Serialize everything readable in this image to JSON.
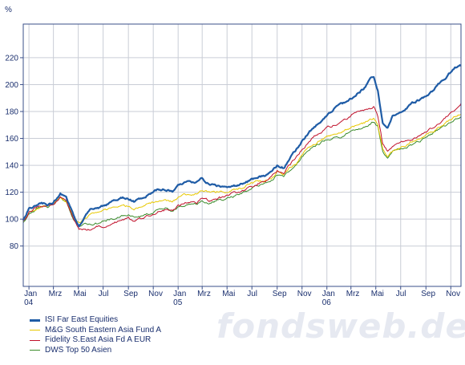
{
  "chart_data": {
    "type": "line",
    "unit_label": "%",
    "ylim": [
      50,
      245
    ],
    "y_ticks": [
      80,
      100,
      120,
      140,
      160,
      180,
      200,
      220
    ],
    "x_start": "2004-01-01",
    "x_end": "2006-12-10",
    "x_ticks": [
      {
        "date": "2004-01-15",
        "label": "Jan",
        "year": "04"
      },
      {
        "date": "2004-03-15",
        "label": "Mrz",
        "year": ""
      },
      {
        "date": "2004-05-15",
        "label": "Mai",
        "year": ""
      },
      {
        "date": "2004-07-15",
        "label": "Jul",
        "year": ""
      },
      {
        "date": "2004-09-15",
        "label": "Sep",
        "year": ""
      },
      {
        "date": "2004-11-15",
        "label": "Nov",
        "year": ""
      },
      {
        "date": "2005-01-15",
        "label": "Jan",
        "year": "05"
      },
      {
        "date": "2005-03-15",
        "label": "Mrz",
        "year": ""
      },
      {
        "date": "2005-05-15",
        "label": "Mai",
        "year": ""
      },
      {
        "date": "2005-07-15",
        "label": "Jul",
        "year": ""
      },
      {
        "date": "2005-09-15",
        "label": "Sep",
        "year": ""
      },
      {
        "date": "2005-11-15",
        "label": "Nov",
        "year": ""
      },
      {
        "date": "2006-01-15",
        "label": "Jan",
        "year": "06"
      },
      {
        "date": "2006-03-15",
        "label": "Mrz",
        "year": ""
      },
      {
        "date": "2006-05-15",
        "label": "Mai",
        "year": ""
      },
      {
        "date": "2006-07-15",
        "label": "Jul",
        "year": ""
      },
      {
        "date": "2006-09-15",
        "label": "Sep",
        "year": ""
      },
      {
        "date": "2006-11-15",
        "label": "Nov",
        "year": ""
      }
    ],
    "grid": true,
    "legend_position": "bottom-left",
    "series": [
      {
        "name": "DWS Top 50 Asien",
        "color": "#3c8c2c",
        "x": [
          "2004-01-01",
          "2004-01-15",
          "2004-02-01",
          "2004-02-15",
          "2004-03-01",
          "2004-03-15",
          "2004-04-01",
          "2004-04-15",
          "2004-05-01",
          "2004-05-10",
          "2004-05-17",
          "2004-06-01",
          "2004-06-15",
          "2004-07-01",
          "2004-07-15",
          "2004-08-01",
          "2004-08-15",
          "2004-09-01",
          "2004-09-15",
          "2004-10-01",
          "2004-10-15",
          "2004-11-01",
          "2004-11-15",
          "2004-12-01",
          "2004-12-15",
          "2005-01-01",
          "2005-01-15",
          "2005-02-01",
          "2005-02-15",
          "2005-03-01",
          "2005-03-15",
          "2005-04-01",
          "2005-04-15",
          "2005-05-01",
          "2005-05-15",
          "2005-06-01",
          "2005-06-15",
          "2005-07-01",
          "2005-07-15",
          "2005-08-01",
          "2005-08-15",
          "2005-09-01",
          "2005-09-15",
          "2005-10-01",
          "2005-10-15",
          "2005-11-01",
          "2005-11-15",
          "2005-12-01",
          "2005-12-15",
          "2006-01-01",
          "2006-01-15",
          "2006-02-01",
          "2006-02-15",
          "2006-03-01",
          "2006-03-15",
          "2006-04-01",
          "2006-04-15",
          "2006-05-01",
          "2006-05-10",
          "2006-05-20",
          "2006-06-01",
          "2006-06-13",
          "2006-06-25",
          "2006-07-10",
          "2006-07-25",
          "2006-08-10",
          "2006-08-25",
          "2006-09-10",
          "2006-09-25",
          "2006-10-10",
          "2006-10-25",
          "2006-11-10",
          "2006-11-25",
          "2006-12-10"
        ],
        "values": [
          97,
          104,
          107,
          109,
          109,
          111,
          116,
          112,
          100,
          97,
          95,
          96,
          97,
          97,
          99,
          100,
          101,
          102,
          103,
          101,
          102,
          104,
          105,
          107,
          108,
          106,
          109,
          110,
          111,
          111,
          114,
          112,
          113,
          114,
          115,
          117,
          118,
          121,
          123,
          125,
          126,
          129,
          133,
          131,
          136,
          141,
          146,
          151,
          154,
          157,
          159,
          160,
          161,
          163,
          165,
          167,
          168,
          171,
          172,
          168,
          150,
          146,
          150,
          152,
          153,
          155,
          157,
          160,
          162,
          165,
          168,
          171,
          174,
          176
        ]
      },
      {
        "name": "M&G South Eastern Asia Fund A",
        "color": "#e8c800",
        "x": [
          "2004-01-01",
          "2004-01-15",
          "2004-02-01",
          "2004-02-15",
          "2004-03-01",
          "2004-03-15",
          "2004-04-01",
          "2004-04-15",
          "2004-05-01",
          "2004-05-10",
          "2004-05-17",
          "2004-06-01",
          "2004-06-15",
          "2004-07-01",
          "2004-07-15",
          "2004-08-01",
          "2004-08-15",
          "2004-09-01",
          "2004-09-15",
          "2004-10-01",
          "2004-10-15",
          "2004-11-01",
          "2004-11-15",
          "2004-12-01",
          "2004-12-15",
          "2005-01-01",
          "2005-01-15",
          "2005-02-01",
          "2005-02-15",
          "2005-03-01",
          "2005-03-15",
          "2005-04-01",
          "2005-04-15",
          "2005-05-01",
          "2005-05-15",
          "2005-06-01",
          "2005-06-15",
          "2005-07-01",
          "2005-07-15",
          "2005-08-01",
          "2005-08-15",
          "2005-09-01",
          "2005-09-15",
          "2005-10-01",
          "2005-10-15",
          "2005-11-01",
          "2005-11-15",
          "2005-12-01",
          "2005-12-15",
          "2006-01-01",
          "2006-01-15",
          "2006-02-01",
          "2006-02-15",
          "2006-03-01",
          "2006-03-15",
          "2006-04-01",
          "2006-04-15",
          "2006-05-01",
          "2006-05-10",
          "2006-05-20",
          "2006-06-01",
          "2006-06-13",
          "2006-06-25",
          "2006-07-10",
          "2006-07-25",
          "2006-08-10",
          "2006-08-25",
          "2006-09-10",
          "2006-09-25",
          "2006-10-10",
          "2006-10-25",
          "2006-11-10",
          "2006-11-25",
          "2006-12-10"
        ],
        "values": [
          98,
          105,
          108,
          110,
          110,
          112,
          116,
          113,
          102,
          99,
          97,
          101,
          103,
          104,
          106,
          108,
          108,
          110,
          110,
          108,
          109,
          111,
          112,
          114,
          114,
          113,
          116,
          118,
          119,
          119,
          122,
          120,
          120,
          121,
          121,
          122,
          123,
          125,
          127,
          128,
          129,
          131,
          135,
          133,
          138,
          142,
          148,
          153,
          156,
          159,
          161,
          163,
          164,
          166,
          168,
          170,
          171,
          174,
          175,
          170,
          152,
          147,
          151,
          153,
          155,
          157,
          159,
          162,
          164,
          167,
          170,
          173,
          176,
          178
        ]
      },
      {
        "name": "Fidelity S.East Asia Fd A EUR",
        "color": "#c0102a",
        "x": [
          "2004-01-01",
          "2004-01-15",
          "2004-02-01",
          "2004-02-15",
          "2004-03-01",
          "2004-03-15",
          "2004-04-01",
          "2004-04-15",
          "2004-05-01",
          "2004-05-10",
          "2004-05-17",
          "2004-06-01",
          "2004-06-15",
          "2004-07-01",
          "2004-07-15",
          "2004-08-01",
          "2004-08-15",
          "2004-09-01",
          "2004-09-15",
          "2004-10-01",
          "2004-10-15",
          "2004-11-01",
          "2004-11-15",
          "2004-12-01",
          "2004-12-15",
          "2005-01-01",
          "2005-01-15",
          "2005-02-01",
          "2005-02-15",
          "2005-03-01",
          "2005-03-15",
          "2005-04-01",
          "2005-04-15",
          "2005-05-01",
          "2005-05-15",
          "2005-06-01",
          "2005-06-15",
          "2005-07-01",
          "2005-07-15",
          "2005-08-01",
          "2005-08-15",
          "2005-09-01",
          "2005-09-15",
          "2005-10-01",
          "2005-10-15",
          "2005-11-01",
          "2005-11-15",
          "2005-12-01",
          "2005-12-15",
          "2006-01-01",
          "2006-01-15",
          "2006-02-01",
          "2006-02-15",
          "2006-03-01",
          "2006-03-15",
          "2006-04-01",
          "2006-04-15",
          "2006-05-01",
          "2006-05-10",
          "2006-05-20",
          "2006-06-01",
          "2006-06-13",
          "2006-06-25",
          "2006-07-10",
          "2006-07-25",
          "2006-08-10",
          "2006-08-25",
          "2006-09-10",
          "2006-09-25",
          "2006-10-10",
          "2006-10-25",
          "2006-11-10",
          "2006-11-25",
          "2006-12-10"
        ],
        "values": [
          98,
          105,
          108,
          110,
          110,
          112,
          117,
          114,
          101,
          96,
          93,
          93,
          92,
          94,
          95,
          97,
          98,
          100,
          101,
          99,
          100,
          103,
          104,
          106,
          107,
          106,
          110,
          112,
          113,
          112,
          116,
          114,
          115,
          116,
          117,
          119,
          120,
          122,
          124,
          127,
          128,
          131,
          136,
          134,
          140,
          146,
          152,
          158,
          162,
          165,
          168,
          170,
          172,
          174,
          177,
          180,
          181,
          182,
          183,
          176,
          155,
          150,
          154,
          156,
          157,
          159,
          161,
          164,
          167,
          170,
          173,
          177,
          181,
          186
        ]
      },
      {
        "name": "ISI Far East Equities",
        "color": "#1f5ca6",
        "x": [
          "2004-01-01",
          "2004-01-15",
          "2004-02-01",
          "2004-02-15",
          "2004-03-01",
          "2004-03-15",
          "2004-04-01",
          "2004-04-15",
          "2004-05-01",
          "2004-05-10",
          "2004-05-17",
          "2004-06-01",
          "2004-06-15",
          "2004-07-01",
          "2004-07-15",
          "2004-08-01",
          "2004-08-15",
          "2004-09-01",
          "2004-09-15",
          "2004-10-01",
          "2004-10-15",
          "2004-11-01",
          "2004-11-15",
          "2004-12-01",
          "2004-12-15",
          "2005-01-01",
          "2005-01-15",
          "2005-02-01",
          "2005-02-15",
          "2005-03-01",
          "2005-03-15",
          "2005-04-01",
          "2005-04-15",
          "2005-05-01",
          "2005-05-15",
          "2005-06-01",
          "2005-06-15",
          "2005-07-01",
          "2005-07-15",
          "2005-08-01",
          "2005-08-15",
          "2005-09-01",
          "2005-09-15",
          "2005-10-01",
          "2005-10-15",
          "2005-11-01",
          "2005-11-15",
          "2005-12-01",
          "2005-12-15",
          "2006-01-01",
          "2006-01-15",
          "2006-02-01",
          "2006-02-15",
          "2006-03-01",
          "2006-03-15",
          "2006-04-01",
          "2006-04-15",
          "2006-05-01",
          "2006-05-10",
          "2006-05-20",
          "2006-06-01",
          "2006-06-13",
          "2006-06-25",
          "2006-07-10",
          "2006-07-25",
          "2006-08-10",
          "2006-08-25",
          "2006-09-10",
          "2006-09-25",
          "2006-10-10",
          "2006-10-25",
          "2006-11-10",
          "2006-11-25",
          "2006-12-10"
        ],
        "values": [
          99,
          108,
          110,
          112,
          111,
          113,
          119,
          116,
          104,
          98,
          94,
          103,
          107,
          108,
          110,
          112,
          114,
          116,
          115,
          113,
          115,
          118,
          120,
          122,
          122,
          121,
          125,
          127,
          128,
          127,
          130,
          126,
          126,
          124,
          124,
          125,
          125,
          127,
          129,
          131,
          132,
          136,
          140,
          138,
          144,
          152,
          158,
          164,
          169,
          173,
          178,
          182,
          184,
          187,
          190,
          194,
          197,
          204,
          206,
          196,
          172,
          168,
          176,
          180,
          182,
          186,
          188,
          190,
          193,
          198,
          203,
          208,
          212,
          214
        ]
      }
    ]
  },
  "legend": {
    "items": [
      {
        "label": "ISI Far East Equities",
        "color": "#1f5ca6",
        "thickness": 3
      },
      {
        "label": "M&G South Eastern Asia Fund A",
        "color": "#e8c800",
        "thickness": 1
      },
      {
        "label": "Fidelity S.East Asia Fd A EUR",
        "color": "#c0102a",
        "thickness": 1
      },
      {
        "label": "DWS Top 50 Asien",
        "color": "#3c8c2c",
        "thickness": 1
      }
    ]
  },
  "watermark": {
    "text": "fondsweb.de"
  },
  "colors": {
    "axis": "#3a4f8a",
    "grid": "#c9cdd6",
    "text": "#1a2f6e"
  }
}
